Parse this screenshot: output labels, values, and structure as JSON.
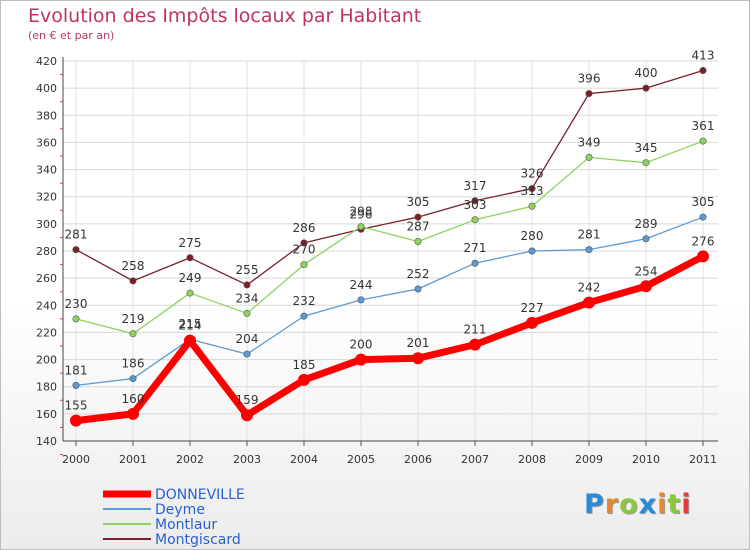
{
  "title": "Evolution des Impôts locaux par Habitant",
  "subtitle": "(en € et par an)",
  "brand": {
    "letters": [
      {
        "ch": "P",
        "color": "#2a8ad6"
      },
      {
        "ch": "r",
        "color": "#e8882c"
      },
      {
        "ch": "o",
        "color": "#8cc63f"
      },
      {
        "ch": "x",
        "color": "#2a8ad6"
      },
      {
        "ch": "i",
        "color": "#e8882c"
      },
      {
        "ch": "t",
        "color": "#8cc63f"
      },
      {
        "ch": "i",
        "color": "#e83a3a"
      }
    ]
  },
  "chart_data": {
    "type": "line",
    "title": "Evolution des Impôts locaux par Habitant",
    "subtitle": "(en € et par an)",
    "xlabel": "",
    "ylabel": "",
    "x": [
      "2000",
      "2001",
      "2002",
      "2003",
      "2004",
      "2005",
      "2006",
      "2007",
      "2008",
      "2009",
      "2010",
      "2011"
    ],
    "ylim": [
      140,
      420
    ],
    "yticks": [
      140,
      160,
      180,
      200,
      220,
      240,
      260,
      280,
      300,
      320,
      340,
      360,
      380,
      400,
      420
    ],
    "grid": true,
    "legend": "bottom-left",
    "series": [
      {
        "name": "Montgiscard",
        "color": "#7b1f2c",
        "values": [
          281,
          258,
          275,
          255,
          286,
          296,
          305,
          317,
          326,
          396,
          400,
          413
        ]
      },
      {
        "name": "Montlaur",
        "color": "#8fd35f",
        "values": [
          230,
          219,
          249,
          234,
          270,
          298,
          287,
          303,
          313,
          349,
          345,
          361
        ]
      },
      {
        "name": "Deyme",
        "color": "#5c9bd1",
        "values": [
          181,
          186,
          215,
          204,
          232,
          244,
          252,
          271,
          280,
          281,
          289,
          305
        ]
      },
      {
        "name": "DONNEVILLE",
        "color": "#ff0000",
        "values": [
          155,
          160,
          214,
          159,
          185,
          200,
          201,
          211,
          227,
          242,
          254,
          276
        ]
      }
    ]
  }
}
